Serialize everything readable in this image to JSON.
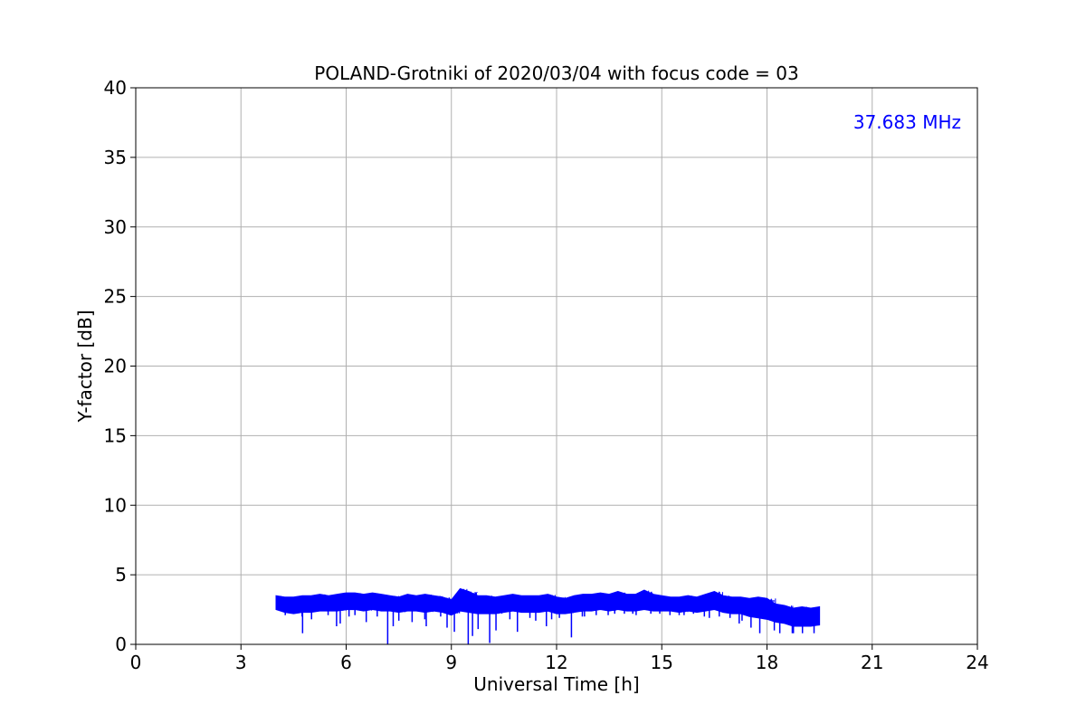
{
  "chart_data": {
    "type": "line",
    "title": "POLAND-Grotniki of 2020/03/04 with focus code = 03",
    "xlabel": "Universal Time [h]",
    "ylabel": "Y-factor [dB]",
    "xlim": [
      0,
      24
    ],
    "ylim": [
      0,
      40
    ],
    "xticks": [
      0,
      3,
      6,
      9,
      12,
      15,
      18,
      21,
      24
    ],
    "yticks": [
      0,
      5,
      10,
      15,
      20,
      25,
      30,
      35,
      40
    ],
    "grid": true,
    "annotation": "37.683 MHz",
    "annotation_color": "#0000ff",
    "series": [
      {
        "color": "#0000ff",
        "x": [
          4.0,
          4.25,
          4.5,
          4.75,
          5.0,
          5.25,
          5.5,
          5.75,
          6.0,
          6.25,
          6.5,
          6.75,
          7.0,
          7.25,
          7.5,
          7.75,
          8.0,
          8.25,
          8.5,
          8.75,
          9.0,
          9.25,
          9.5,
          9.75,
          10.0,
          10.25,
          10.5,
          10.75,
          11.0,
          11.25,
          11.5,
          11.75,
          12.0,
          12.25,
          12.5,
          12.75,
          13.0,
          13.25,
          13.5,
          13.75,
          14.0,
          14.25,
          14.5,
          14.75,
          15.0,
          15.25,
          15.5,
          15.75,
          16.0,
          16.25,
          16.5,
          16.75,
          17.0,
          17.25,
          17.5,
          17.75,
          18.0,
          18.25,
          18.5,
          18.75,
          19.0,
          19.25,
          19.5
        ],
        "y_max": [
          3.5,
          3.4,
          3.4,
          3.5,
          3.5,
          3.6,
          3.5,
          3.6,
          3.7,
          3.7,
          3.6,
          3.7,
          3.6,
          3.5,
          3.4,
          3.6,
          3.5,
          3.6,
          3.5,
          3.4,
          3.2,
          4.0,
          3.8,
          3.5,
          3.5,
          3.4,
          3.5,
          3.6,
          3.5,
          3.5,
          3.5,
          3.6,
          3.4,
          3.3,
          3.5,
          3.6,
          3.6,
          3.7,
          3.6,
          3.8,
          3.6,
          3.6,
          3.9,
          3.6,
          3.5,
          3.4,
          3.4,
          3.5,
          3.4,
          3.6,
          3.8,
          3.5,
          3.4,
          3.4,
          3.3,
          3.4,
          3.3,
          2.9,
          2.8,
          2.6,
          2.7,
          2.6,
          2.7
        ],
        "y_min": [
          2.5,
          2.1,
          2.0,
          0.8,
          1.8,
          2.1,
          1.3,
          1.5,
          2.0,
          2.1,
          1.6,
          2.0,
          0.0,
          1.3,
          1.7,
          1.6,
          1.8,
          1.3,
          2.0,
          1.2,
          0.9,
          0.0,
          0.6,
          1.1,
          0.1,
          1.0,
          1.8,
          0.9,
          1.9,
          1.7,
          1.3,
          1.8,
          1.9,
          0.5,
          2.0,
          2.0,
          2.1,
          2.1,
          2.2,
          2.2,
          2.2,
          2.1,
          2.2,
          2.2,
          2.1,
          2.1,
          2.1,
          2.2,
          2.0,
          1.9,
          2.0,
          1.9,
          1.5,
          1.7,
          1.2,
          0.8,
          1.0,
          0.8,
          0.8,
          0.8,
          0.8,
          0.8,
          0.8
        ],
        "y_mean": [
          3.0,
          2.9,
          2.8,
          2.9,
          2.9,
          3.0,
          3.0,
          3.0,
          3.1,
          3.1,
          3.0,
          3.1,
          3.0,
          3.0,
          2.9,
          3.0,
          3.0,
          2.9,
          3.0,
          2.9,
          2.7,
          3.0,
          2.9,
          2.8,
          2.8,
          2.8,
          2.9,
          3.0,
          2.9,
          2.9,
          2.9,
          3.0,
          2.8,
          2.8,
          2.9,
          3.0,
          3.0,
          3.1,
          3.0,
          3.1,
          3.0,
          3.0,
          3.1,
          3.0,
          3.0,
          3.0,
          2.9,
          3.0,
          2.9,
          3.0,
          3.1,
          2.9,
          2.8,
          2.8,
          2.6,
          2.5,
          2.4,
          2.2,
          2.1,
          1.9,
          1.9,
          1.9,
          2.0
        ]
      }
    ]
  }
}
